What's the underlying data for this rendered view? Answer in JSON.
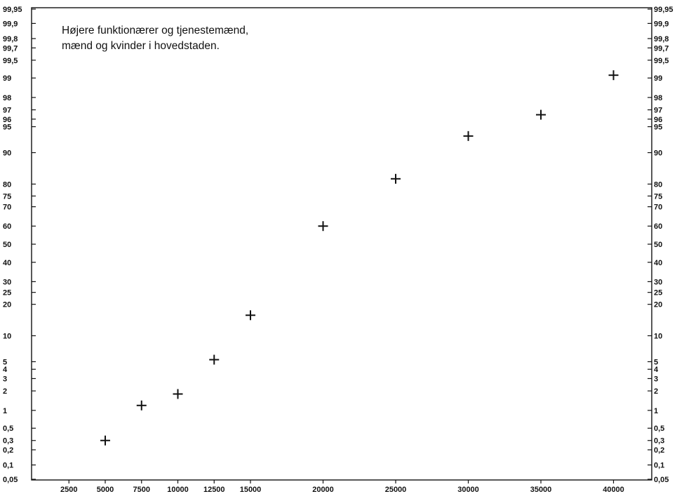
{
  "chart_data": {
    "type": "scatter",
    "title_lines": [
      "Højere funktionærer og tjenestemænd,",
      "mænd og kvinder i hovedstaden."
    ],
    "xlabel": "",
    "ylabel": "",
    "x_scale": "linear",
    "y_scale": "probability",
    "xlim": [
      0,
      41500
    ],
    "ylim": [
      0.05,
      99.95
    ],
    "x_ticks": [
      2500,
      5000,
      7500,
      10000,
      12500,
      15000,
      20000,
      25000,
      30000,
      35000,
      40000
    ],
    "y_ticks": [
      {
        "value": 0.05,
        "label": "0,05"
      },
      {
        "value": 0.1,
        "label": "0,1"
      },
      {
        "value": 0.2,
        "label": "0,2"
      },
      {
        "value": 0.3,
        "label": "0,3"
      },
      {
        "value": 0.5,
        "label": "0,5"
      },
      {
        "value": 1,
        "label": "1"
      },
      {
        "value": 2,
        "label": "2"
      },
      {
        "value": 3,
        "label": "3"
      },
      {
        "value": 4,
        "label": "4"
      },
      {
        "value": 5,
        "label": "5"
      },
      {
        "value": 10,
        "label": "10"
      },
      {
        "value": 20,
        "label": "20"
      },
      {
        "value": 25,
        "label": "25"
      },
      {
        "value": 30,
        "label": "30"
      },
      {
        "value": 40,
        "label": "40"
      },
      {
        "value": 50,
        "label": "50"
      },
      {
        "value": 60,
        "label": "60"
      },
      {
        "value": 70,
        "label": "70"
      },
      {
        "value": 75,
        "label": "75"
      },
      {
        "value": 80,
        "label": "80"
      },
      {
        "value": 90,
        "label": "90"
      },
      {
        "value": 95,
        "label": "95"
      },
      {
        "value": 96,
        "label": "96"
      },
      {
        "value": 97,
        "label": "97"
      },
      {
        "value": 98,
        "label": "98"
      },
      {
        "value": 99,
        "label": "99"
      },
      {
        "value": 99.5,
        "label": "99,5"
      },
      {
        "value": 99.7,
        "label": "99,7"
      },
      {
        "value": 99.8,
        "label": "99,8"
      },
      {
        "value": 99.9,
        "label": "99,9"
      },
      {
        "value": 99.95,
        "label": "99,95"
      }
    ],
    "y_labels_both_sides": true,
    "grid": false,
    "marker": "plus",
    "points": [
      {
        "x": 5000,
        "y": 0.3
      },
      {
        "x": 7500,
        "y": 1.2
      },
      {
        "x": 10000,
        "y": 1.8
      },
      {
        "x": 12500,
        "y": 5.3
      },
      {
        "x": 15000,
        "y": 16
      },
      {
        "x": 20000,
        "y": 60
      },
      {
        "x": 25000,
        "y": 82
      },
      {
        "x": 30000,
        "y": 93.5
      },
      {
        "x": 35000,
        "y": 96.5
      },
      {
        "x": 40000,
        "y": 99.1
      }
    ],
    "colors": {
      "ink": "#111111",
      "background": "#ffffff"
    }
  }
}
